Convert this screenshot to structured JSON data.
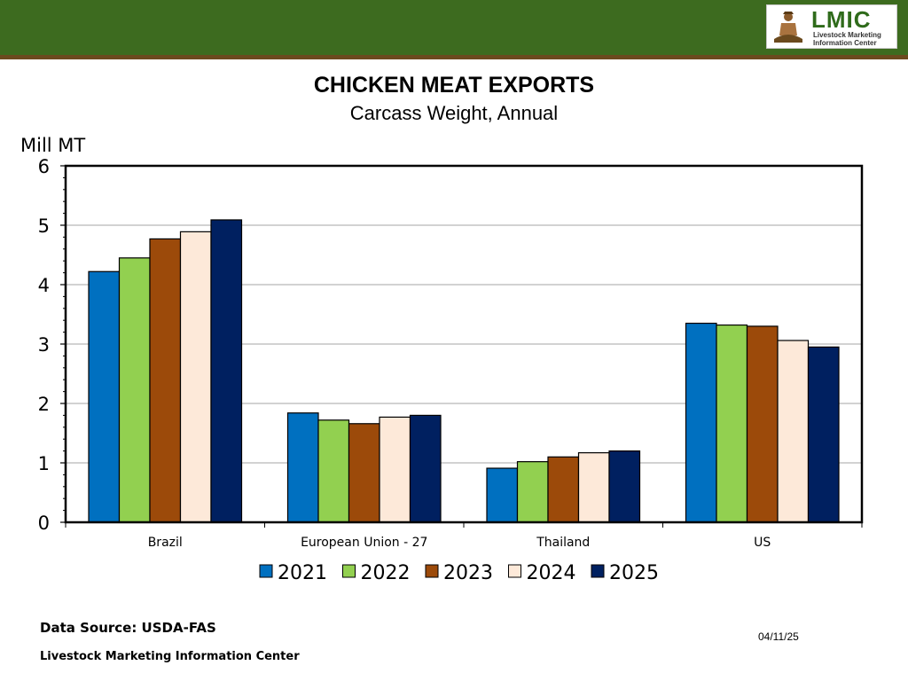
{
  "header": {
    "logo_title": "LMIC",
    "logo_subtitle_line1": "Livestock Marketing",
    "logo_subtitle_line2": "Information Center"
  },
  "chart_data": {
    "type": "bar",
    "title": "CHICKEN MEAT EXPORTS",
    "subtitle": "Carcass Weight, Annual",
    "ylabel": "Mill MT",
    "xlabel": "",
    "ylim": [
      0,
      6
    ],
    "yticks": [
      "0",
      "1",
      "2",
      "3",
      "4",
      "5",
      "6"
    ],
    "grid": true,
    "legend_position": "bottom",
    "categories": [
      "Brazil",
      "European Union - 27",
      "Thailand",
      "US"
    ],
    "series": [
      {
        "name": "2021",
        "color": "#0070c0",
        "values": [
          4.22,
          1.84,
          0.91,
          3.35
        ]
      },
      {
        "name": "2022",
        "color": "#92d050",
        "values": [
          4.45,
          1.72,
          1.02,
          3.32
        ]
      },
      {
        "name": "2023",
        "color": "#9c4a0a",
        "values": [
          4.77,
          1.66,
          1.1,
          3.3
        ]
      },
      {
        "name": "2024",
        "color": "#fde9d9",
        "values": [
          4.89,
          1.77,
          1.17,
          3.06
        ]
      },
      {
        "name": "2025",
        "color": "#002060",
        "values": [
          5.09,
          1.8,
          1.2,
          2.95
        ]
      }
    ]
  },
  "footer": {
    "source": "Data Source:  USDA-FAS",
    "organization": "Livestock Marketing Information Center",
    "date": "04/11/25"
  }
}
